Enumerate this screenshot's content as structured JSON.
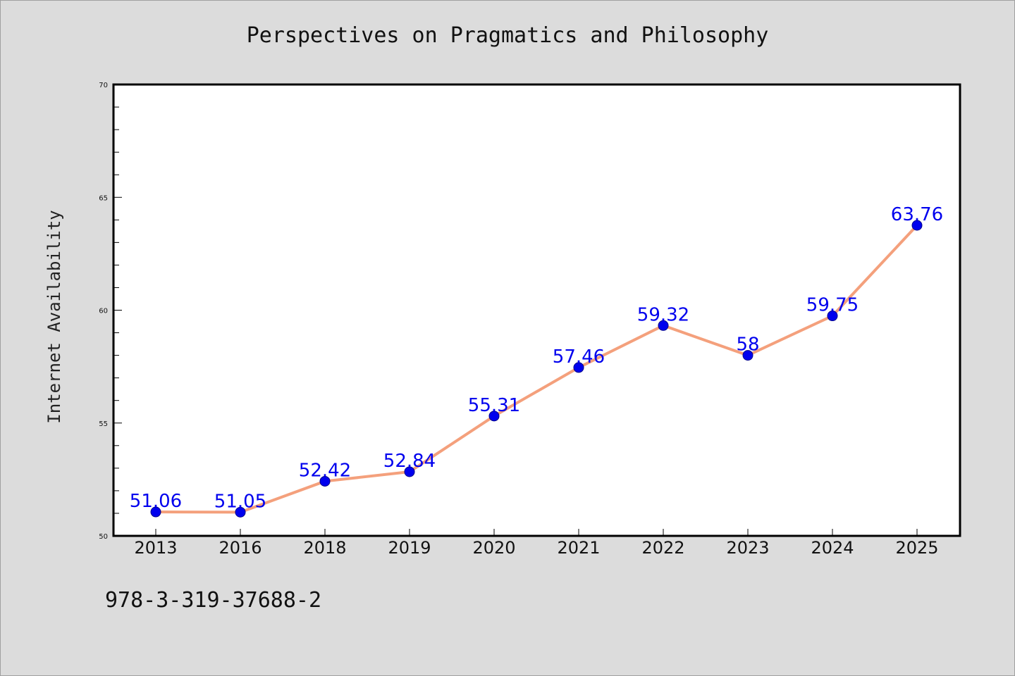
{
  "chart_data": {
    "type": "line",
    "title": "Perspectives on Pragmatics and Philosophy",
    "xlabel": "",
    "ylabel": "Internet Availability",
    "categories": [
      "2013",
      "2016",
      "2018",
      "2019",
      "2020",
      "2021",
      "2022",
      "2023",
      "2024",
      "2025"
    ],
    "series": [
      {
        "values": [
          51.06,
          51.05,
          52.42,
          52.84,
          55.31,
          57.46,
          59.32,
          58,
          59.75,
          63.76
        ],
        "labels": [
          "51.06",
          "51.05",
          "52.42",
          "52.84",
          "55.31",
          "57.46",
          "59.32",
          "58",
          "59.75",
          "63.76"
        ],
        "line_color": "#f4a07c",
        "marker_color": "#0000ee"
      }
    ],
    "ylim": [
      50,
      70
    ],
    "yticks": [
      50,
      55,
      60,
      65,
      70
    ],
    "grid": false,
    "legend": "none"
  },
  "footnote": "978-3-319-37688-2"
}
